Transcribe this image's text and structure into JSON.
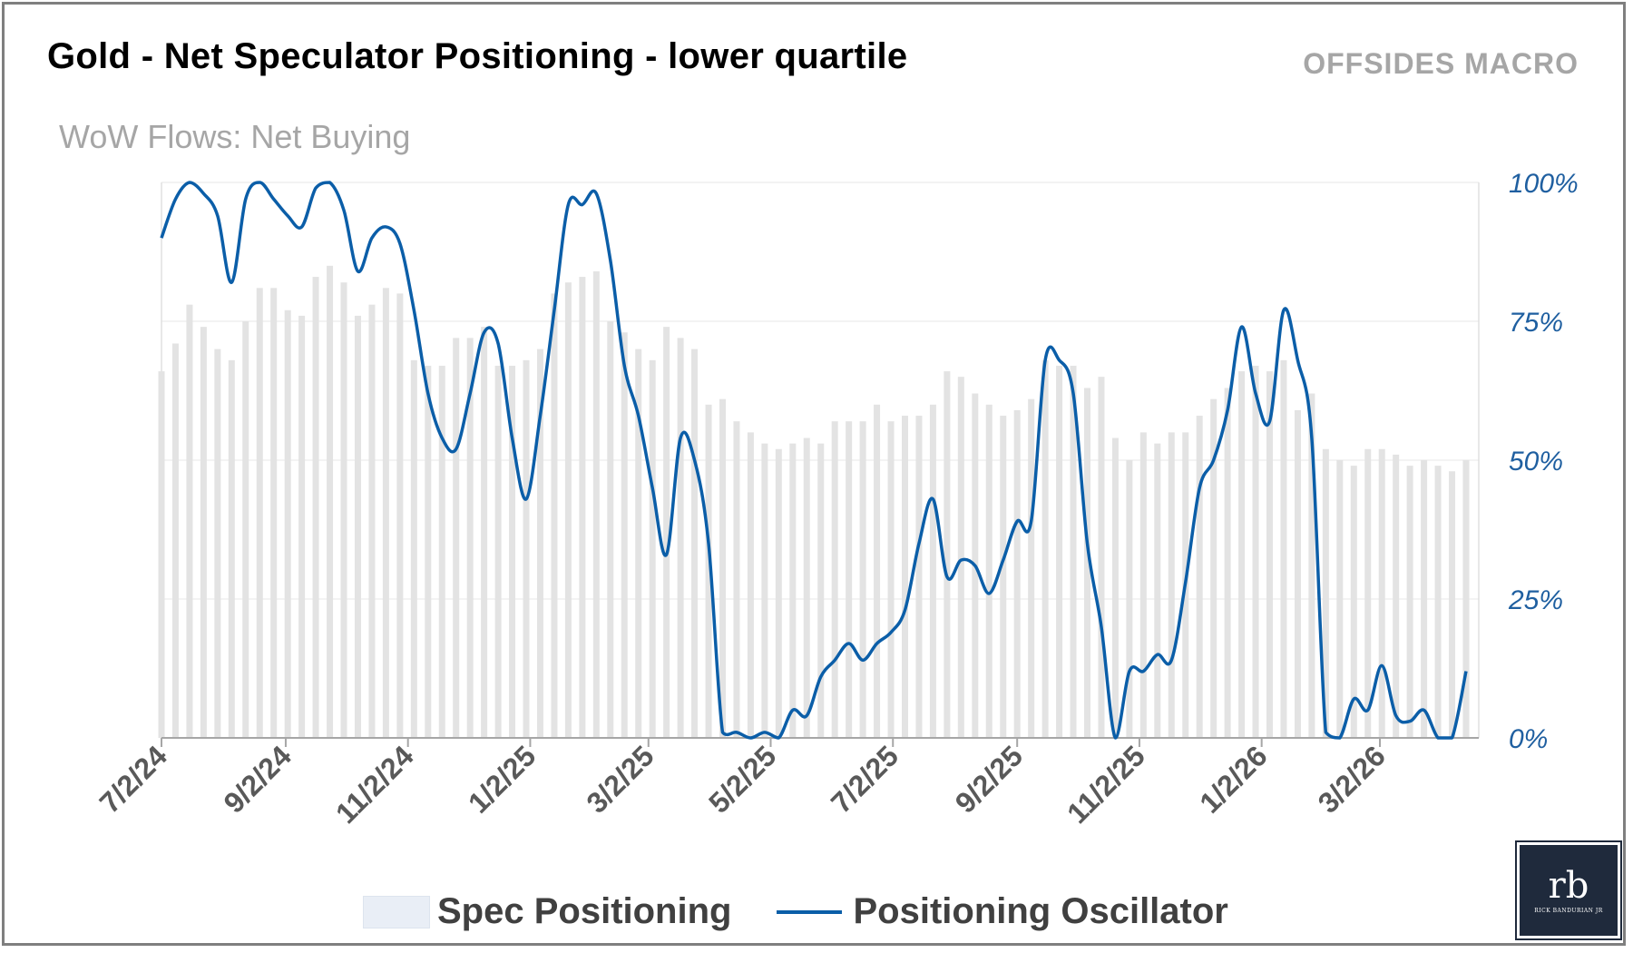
{
  "header": {
    "title": "Gold - Net Speculator Positioning - lower quartile",
    "brand": "OFFSIDES MACRO",
    "subtitle": "WoW Flows: Net Buying"
  },
  "legend": {
    "bars_label": "Spec Positioning",
    "line_label": "Positioning Oscillator"
  },
  "logo": {
    "text": "rb",
    "caption": "RICK BANDURIAN JR"
  },
  "colors": {
    "line": "#0b5ea8",
    "bars": "#e3e3e3",
    "axis_text": "#1f5fa0",
    "grid": "#efefef"
  },
  "chart_data": {
    "type": "bar+line",
    "y_axis_side": "right",
    "ylim": [
      0,
      1
    ],
    "y_ticks": [
      "0%",
      "25%",
      "50%",
      "75%",
      "100%"
    ],
    "x_ticks": [
      "7/2/24",
      "9/2/24",
      "11/2/24",
      "1/2/25",
      "3/2/25",
      "5/2/25",
      "7/2/25",
      "9/2/25",
      "11/2/25",
      "1/2/26",
      "3/2/26"
    ],
    "grid": "horizontal",
    "legend_position": "bottom",
    "dates": [
      "7/2/24",
      "7/9/24",
      "7/16/24",
      "7/23/24",
      "7/30/24",
      "8/6/24",
      "8/13/24",
      "8/20/24",
      "8/27/24",
      "9/3/24",
      "9/10/24",
      "9/17/24",
      "9/24/24",
      "10/1/24",
      "10/8/24",
      "10/15/24",
      "10/22/24",
      "10/29/24",
      "11/5/24",
      "11/12/24",
      "11/19/24",
      "11/26/24",
      "12/3/24",
      "12/10/24",
      "12/17/24",
      "12/24/24",
      "12/31/24",
      "1/7/25",
      "1/14/25",
      "1/21/25",
      "1/28/25",
      "2/4/25",
      "2/11/25",
      "2/18/25",
      "2/25/25",
      "3/4/25",
      "3/11/25",
      "3/18/25",
      "3/25/25",
      "4/1/25",
      "4/8/25",
      "4/15/25",
      "4/22/25",
      "4/29/25",
      "5/6/25",
      "5/13/25",
      "5/20/25",
      "5/27/25",
      "6/3/25",
      "6/10/25",
      "6/17/25",
      "6/24/25",
      "7/1/25",
      "7/8/25",
      "7/15/25",
      "7/22/25",
      "7/29/25",
      "8/5/25",
      "8/12/25",
      "8/19/25",
      "8/26/25",
      "9/2/25",
      "9/9/25",
      "9/16/25",
      "9/23/25",
      "9/30/25",
      "10/7/25",
      "10/14/25",
      "10/21/25",
      "10/28/25",
      "11/4/25",
      "11/11/25",
      "11/18/25",
      "11/25/25",
      "12/2/25",
      "12/9/25",
      "12/16/25",
      "12/23/25",
      "12/30/25",
      "1/6/26",
      "1/13/26",
      "1/20/26",
      "1/27/26",
      "2/3/26",
      "2/10/26",
      "2/17/26",
      "2/24/26",
      "3/3/26",
      "3/10/26",
      "3/17/26",
      "3/24/26",
      "3/31/26",
      "4/7/26",
      "4/14/26"
    ],
    "series": [
      {
        "name": "Spec Positioning",
        "type": "bar",
        "values": [
          0.66,
          0.71,
          0.78,
          0.74,
          0.7,
          0.68,
          0.75,
          0.81,
          0.81,
          0.77,
          0.76,
          0.83,
          0.85,
          0.82,
          0.76,
          0.78,
          0.81,
          0.8,
          0.68,
          0.67,
          0.67,
          0.72,
          0.72,
          0.74,
          0.67,
          0.67,
          0.68,
          0.7,
          0.8,
          0.82,
          0.83,
          0.84,
          0.75,
          0.73,
          0.7,
          0.68,
          0.74,
          0.72,
          0.7,
          0.6,
          0.61,
          0.57,
          0.55,
          0.53,
          0.52,
          0.53,
          0.54,
          0.53,
          0.57,
          0.57,
          0.57,
          0.6,
          0.57,
          0.58,
          0.58,
          0.6,
          0.66,
          0.65,
          0.62,
          0.6,
          0.58,
          0.59,
          0.61,
          0.68,
          0.67,
          0.67,
          0.63,
          0.65,
          0.54,
          0.5,
          0.55,
          0.53,
          0.55,
          0.55,
          0.58,
          0.61,
          0.63,
          0.66,
          0.67,
          0.66,
          0.68,
          0.59,
          0.62,
          0.52,
          0.5,
          0.49,
          0.52,
          0.52,
          0.51,
          0.49,
          0.5,
          0.49,
          0.48,
          0.5
        ]
      },
      {
        "name": "Positioning Oscillator",
        "type": "line",
        "values": [
          0.9,
          0.97,
          1.0,
          0.98,
          0.94,
          0.82,
          0.97,
          1.0,
          0.97,
          0.94,
          0.92,
          0.99,
          1.0,
          0.95,
          0.84,
          0.9,
          0.92,
          0.89,
          0.77,
          0.62,
          0.54,
          0.52,
          0.62,
          0.73,
          0.71,
          0.54,
          0.43,
          0.58,
          0.77,
          0.96,
          0.96,
          0.98,
          0.86,
          0.67,
          0.58,
          0.45,
          0.33,
          0.54,
          0.5,
          0.35,
          0.01,
          0.01,
          0.0,
          0.01,
          0.0,
          0.05,
          0.04,
          0.11,
          0.14,
          0.17,
          0.14,
          0.17,
          0.19,
          0.23,
          0.35,
          0.43,
          0.29,
          0.32,
          0.31,
          0.26,
          0.32,
          0.39,
          0.39,
          0.68,
          0.68,
          0.62,
          0.35,
          0.2,
          0.0,
          0.12,
          0.12,
          0.15,
          0.14,
          0.28,
          0.45,
          0.5,
          0.59,
          0.74,
          0.62,
          0.57,
          0.77,
          0.68,
          0.54,
          0.01,
          0.0,
          0.07,
          0.05,
          0.13,
          0.04,
          0.03,
          0.05,
          0.0,
          0.0,
          0.12
        ]
      }
    ]
  }
}
